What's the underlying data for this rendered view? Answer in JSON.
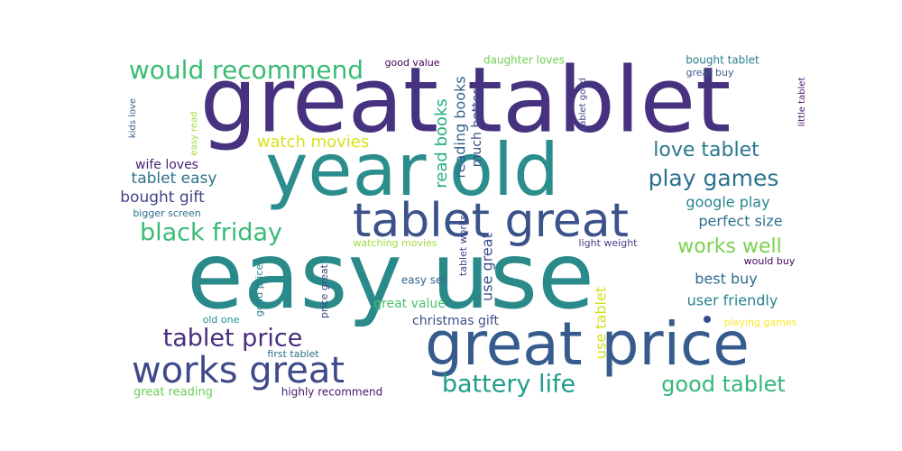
{
  "words": [
    {
      "text": "easy use",
      "color": "#2a8a8a"
    },
    {
      "text": "great tablet",
      "color": "#46327e"
    },
    {
      "text": "year old",
      "color": "#2c8e8c"
    },
    {
      "text": "great price",
      "color": "#365c8d"
    },
    {
      "text": "tablet great",
      "color": "#3b528b"
    },
    {
      "text": "works great",
      "color": "#3e4a89"
    },
    {
      "text": "would recommend",
      "color": "#3bbb75"
    },
    {
      "text": "love tablet",
      "color": "#2a788e"
    },
    {
      "text": "play games",
      "color": "#2c728e"
    },
    {
      "text": "black friday",
      "color": "#3aba76"
    },
    {
      "text": "tablet price",
      "color": "#472d7b"
    },
    {
      "text": "battery life",
      "color": "#1f9e89"
    },
    {
      "text": "good tablet",
      "color": "#35b779"
    },
    {
      "text": "works well",
      "color": "#7ad151"
    },
    {
      "text": "watch movies",
      "color": "#d8e219"
    },
    {
      "text": "google play",
      "color": "#25858e"
    },
    {
      "text": "perfect size",
      "color": "#2d708e"
    },
    {
      "text": "best buy",
      "color": "#2f6c8e"
    },
    {
      "text": "user friendly",
      "color": "#26828e"
    },
    {
      "text": "tablet easy",
      "color": "#2c738e"
    },
    {
      "text": "bought gift",
      "color": "#414487"
    },
    {
      "text": "wife loves",
      "color": "#482475"
    },
    {
      "text": "read books",
      "color": "#29af7f"
    },
    {
      "text": "reading books",
      "color": "#33638d"
    },
    {
      "text": "much better",
      "color": "#3e4c8a"
    },
    {
      "text": "use great",
      "color": "#3b518b"
    },
    {
      "text": "use tablet",
      "color": "#d0e11c"
    },
    {
      "text": "tablet works",
      "color": "#3f4889"
    },
    {
      "text": "great value",
      "color": "#4ac16d"
    },
    {
      "text": "christmas gift",
      "color": "#3d4e8a"
    },
    {
      "text": "easy set",
      "color": "#33638d"
    },
    {
      "text": "highly recommend",
      "color": "#481a6c"
    },
    {
      "text": "great reading",
      "color": "#6ccd5a"
    },
    {
      "text": "first tablet",
      "color": "#2e6f8e"
    },
    {
      "text": "good value",
      "color": "#440154"
    },
    {
      "text": "daughter loves",
      "color": "#73d056"
    },
    {
      "text": "bought tablet",
      "color": "#277f8e"
    },
    {
      "text": "great buy",
      "color": "#38588c"
    },
    {
      "text": "tablet good",
      "color": "#3e4989"
    },
    {
      "text": "little tablet",
      "color": "#481b6d"
    },
    {
      "text": "kids love",
      "color": "#355f8d"
    },
    {
      "text": "easy read",
      "color": "#a0da39"
    },
    {
      "text": "bigger screen",
      "color": "#2e6e8e"
    },
    {
      "text": "watching movies",
      "color": "#9fda3a"
    },
    {
      "text": "light weight",
      "color": "#433e85"
    },
    {
      "text": "would buy",
      "color": "#450559"
    },
    {
      "text": "playing games",
      "color": "#fde725"
    },
    {
      "text": "good price",
      "color": "#27808e"
    },
    {
      "text": "price great",
      "color": "#3e4989"
    },
    {
      "text": "old one",
      "color": "#20928c"
    }
  ]
}
